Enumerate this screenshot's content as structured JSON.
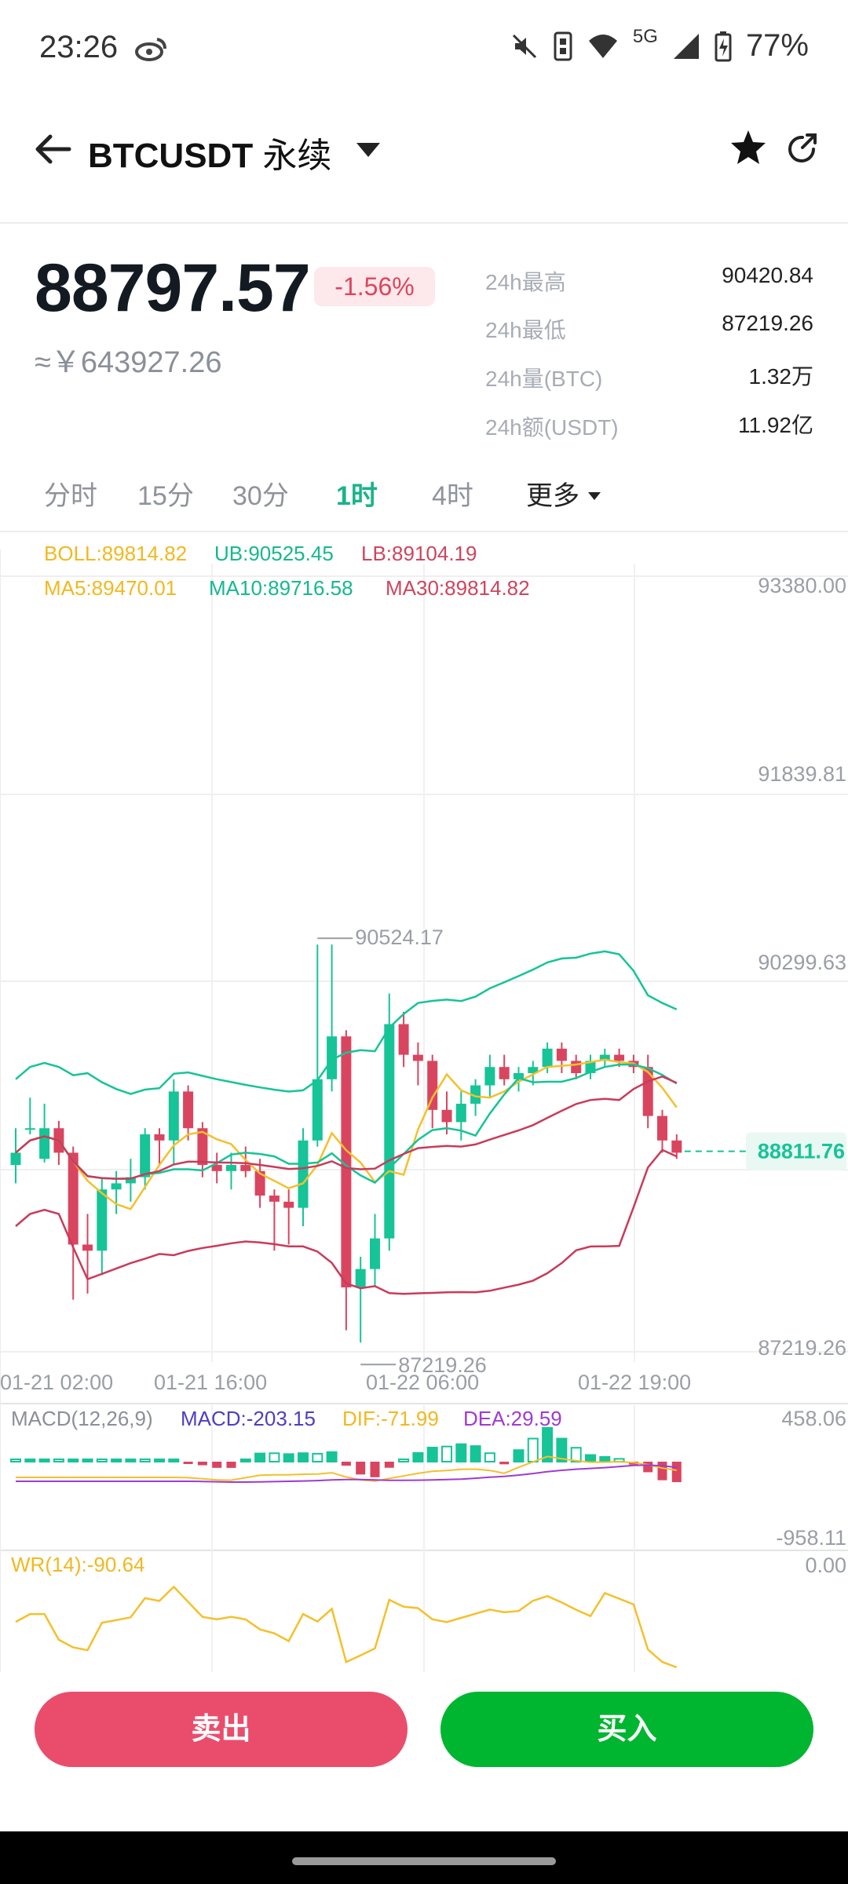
{
  "status_bar": {
    "time": "23:26",
    "network": "5G",
    "battery": "77%",
    "icons": [
      "weibo-icon",
      "mute-icon",
      "nfc-icon",
      "wifi-icon",
      "signal-icon",
      "battery-icon"
    ]
  },
  "header": {
    "symbol": "BTCUSDT",
    "contract_type": "永续",
    "icons": [
      "back-arrow-icon",
      "dropdown-triangle-icon",
      "star-icon",
      "share-icon"
    ]
  },
  "ticker": {
    "last_price": "88797.57",
    "change_pct": "-1.56%",
    "cny_price": "≈￥643927.26",
    "stats": [
      {
        "label": "24h最高",
        "value": "90420.84"
      },
      {
        "label": "24h最低",
        "value": "87219.26"
      },
      {
        "label": "24h量(BTC)",
        "value": "1.32万"
      },
      {
        "label": "24h额(USDT)",
        "value": "11.92亿"
      }
    ]
  },
  "intervals": {
    "items": [
      "分时",
      "15分",
      "30分",
      "1时",
      "4时"
    ],
    "active": "1时",
    "more_label": "更多"
  },
  "indicators": {
    "boll": "BOLL:89814.82",
    "ub": "UB:90525.45",
    "lb": "LB:89104.19",
    "ma5": "MA5:89470.01",
    "ma10": "MA10:89716.58",
    "ma30": "MA30:89814.82",
    "macd_title": "MACD(12,26,9)",
    "macd": "MACD:-203.15",
    "dif": "DIF:-71.99",
    "dea": "DEA:29.59",
    "wr": "WR(14):-90.64"
  },
  "chart_data": {
    "type": "candlestick",
    "y_ticks": [
      "93380.00",
      "91839.81",
      "90299.63",
      "87219.26"
    ],
    "ylim": [
      87219.26,
      93380.0
    ],
    "x_ticks": [
      "01-21 02:00",
      "01-21 16:00",
      "01-22 06:00",
      "01-22 19:00"
    ],
    "high_marker": "90524.17",
    "low_marker": "87219.26",
    "current_price_label": "88811.76",
    "macd_ticks": [
      "458.06",
      "-958.11"
    ],
    "wr_ticks": [
      "0.00"
    ],
    "colors": {
      "up": "#16c497",
      "down": "#d9455f",
      "ma5": "#f4c02c",
      "ma10": "#16c497",
      "ma30": "#c93b5b",
      "dea": "#a03ad2"
    },
    "candles": [
      {
        "o": 88700,
        "h": 89000,
        "l": 88550,
        "c": 88800
      },
      {
        "o": 89000,
        "h": 89250,
        "l": 88950,
        "c": 89000
      },
      {
        "o": 88750,
        "h": 89200,
        "l": 88720,
        "c": 89000
      },
      {
        "o": 89000,
        "h": 89060,
        "l": 88700,
        "c": 88800
      },
      {
        "o": 88800,
        "h": 88850,
        "l": 87600,
        "c": 88050
      },
      {
        "o": 88050,
        "h": 88300,
        "l": 87650,
        "c": 88000
      },
      {
        "o": 88000,
        "h": 88600,
        "l": 87800,
        "c": 88500
      },
      {
        "o": 88500,
        "h": 88650,
        "l": 88300,
        "c": 88550
      },
      {
        "o": 88550,
        "h": 88750,
        "l": 88400,
        "c": 88600
      },
      {
        "o": 88600,
        "h": 89000,
        "l": 88500,
        "c": 88950
      },
      {
        "o": 88950,
        "h": 89000,
        "l": 88700,
        "c": 88900
      },
      {
        "o": 88900,
        "h": 89400,
        "l": 88700,
        "c": 89300
      },
      {
        "o": 89300,
        "h": 89350,
        "l": 88900,
        "c": 89000
      },
      {
        "o": 89000,
        "h": 89050,
        "l": 88600,
        "c": 88700
      },
      {
        "o": 88700,
        "h": 88800,
        "l": 88550,
        "c": 88650
      },
      {
        "o": 88650,
        "h": 88800,
        "l": 88500,
        "c": 88700
      },
      {
        "o": 88700,
        "h": 88850,
        "l": 88600,
        "c": 88650
      },
      {
        "o": 88650,
        "h": 88750,
        "l": 88350,
        "c": 88450
      },
      {
        "o": 88450,
        "h": 88500,
        "l": 88000,
        "c": 88400
      },
      {
        "o": 88400,
        "h": 88500,
        "l": 88050,
        "c": 88350
      },
      {
        "o": 88350,
        "h": 89000,
        "l": 88200,
        "c": 88900
      },
      {
        "o": 88900,
        "h": 90500,
        "l": 88850,
        "c": 89400
      },
      {
        "o": 89400,
        "h": 90500,
        "l": 89300,
        "c": 89750
      },
      {
        "o": 89750,
        "h": 89800,
        "l": 87350,
        "c": 87700
      },
      {
        "o": 87700,
        "h": 87950,
        "l": 87250,
        "c": 87850
      },
      {
        "o": 87850,
        "h": 88300,
        "l": 87700,
        "c": 88100
      },
      {
        "o": 88100,
        "h": 90100,
        "l": 88000,
        "c": 89850
      },
      {
        "o": 89850,
        "h": 89950,
        "l": 89500,
        "c": 89600
      },
      {
        "o": 89600,
        "h": 89700,
        "l": 89350,
        "c": 89550
      },
      {
        "o": 89550,
        "h": 89600,
        "l": 89000,
        "c": 89150
      },
      {
        "o": 89150,
        "h": 89300,
        "l": 88950,
        "c": 89050
      },
      {
        "o": 89050,
        "h": 89300,
        "l": 88900,
        "c": 89200
      },
      {
        "o": 89200,
        "h": 89400,
        "l": 89100,
        "c": 89350
      },
      {
        "o": 89350,
        "h": 89600,
        "l": 89250,
        "c": 89500
      },
      {
        "o": 89500,
        "h": 89600,
        "l": 89350,
        "c": 89400
      },
      {
        "o": 89400,
        "h": 89500,
        "l": 89300,
        "c": 89450
      },
      {
        "o": 89450,
        "h": 89550,
        "l": 89350,
        "c": 89500
      },
      {
        "o": 89500,
        "h": 89700,
        "l": 89450,
        "c": 89650
      },
      {
        "o": 89650,
        "h": 89700,
        "l": 89450,
        "c": 89550
      },
      {
        "o": 89550,
        "h": 89600,
        "l": 89400,
        "c": 89450
      },
      {
        "o": 89450,
        "h": 89600,
        "l": 89400,
        "c": 89550
      },
      {
        "o": 89550,
        "h": 89650,
        "l": 89500,
        "c": 89600
      },
      {
        "o": 89600,
        "h": 89650,
        "l": 89500,
        "c": 89550
      },
      {
        "o": 89550,
        "h": 89600,
        "l": 89450,
        "c": 89500
      },
      {
        "o": 89500,
        "h": 89600,
        "l": 89000,
        "c": 89100
      },
      {
        "o": 89100,
        "h": 89150,
        "l": 88800,
        "c": 88900
      },
      {
        "o": 88900,
        "h": 88950,
        "l": 88750,
        "c": 88800
      }
    ]
  },
  "actions": {
    "sell_label": "卖出",
    "buy_label": "买入"
  }
}
